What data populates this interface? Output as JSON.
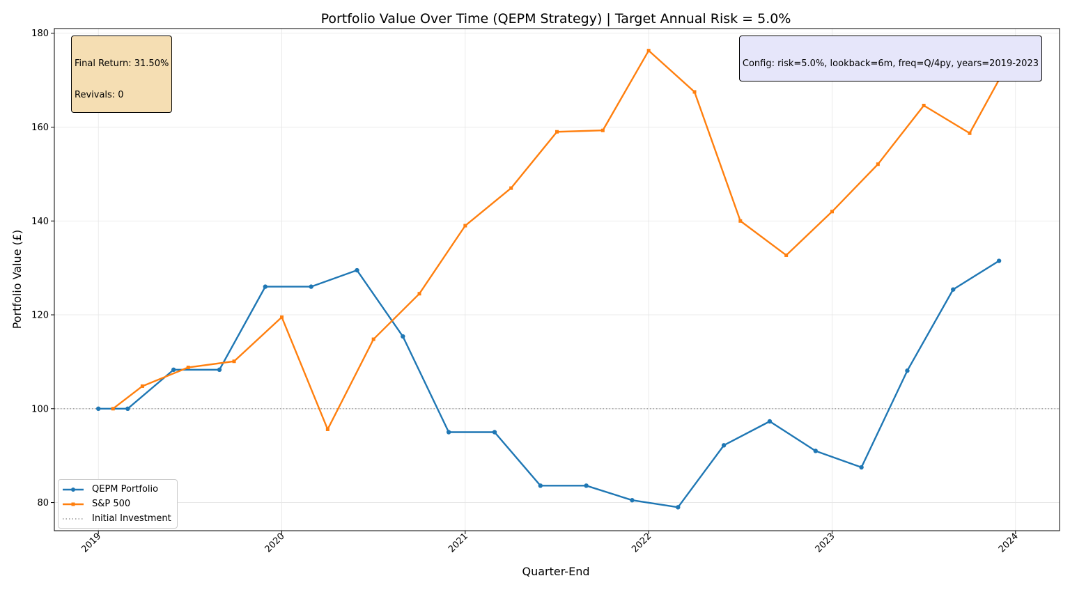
{
  "chart_data": {
    "type": "line",
    "title": "Portfolio Value Over Time (QEPM Strategy) | Target Annual Risk = 5.0%",
    "xlabel": "Quarter-End",
    "ylabel": "Portfolio Value (£)",
    "xlim": [
      2018.76,
      2024.24
    ],
    "ylim": [
      74,
      181
    ],
    "grid": true,
    "x_ticks": [
      2019,
      2020,
      2021,
      2022,
      2023,
      2024
    ],
    "x_tick_labels": [
      "2019",
      "2020",
      "2021",
      "2022",
      "2023",
      "2024"
    ],
    "y_ticks": [
      80,
      100,
      120,
      140,
      160,
      180
    ],
    "y_tick_labels": [
      "80",
      "100",
      "120",
      "140",
      "160",
      "180"
    ],
    "series": [
      {
        "name": "QEPM Portfolio",
        "color": "#1f77b4",
        "marker": "circle",
        "x": [
          2019.0,
          2019.16,
          2019.41,
          2019.66,
          2019.91,
          2020.16,
          2020.41,
          2020.66,
          2020.91,
          2021.16,
          2021.41,
          2021.66,
          2021.91,
          2022.16,
          2022.41,
          2022.66,
          2022.91,
          2023.16,
          2023.41,
          2023.66,
          2023.91
        ],
        "values": [
          100.0,
          100.0,
          108.3,
          108.3,
          126.0,
          126.0,
          129.5,
          115.4,
          95.0,
          95.0,
          83.6,
          83.6,
          80.5,
          79.0,
          92.2,
          97.3,
          91.0,
          87.5,
          108.1,
          125.4,
          131.5
        ]
      },
      {
        "name": "S&P 500",
        "color": "#ff7f0e",
        "marker": "square",
        "x": [
          2019.08,
          2019.24,
          2019.49,
          2019.74,
          2020.0,
          2020.25,
          2020.5,
          2020.75,
          2021.0,
          2021.25,
          2021.5,
          2021.75,
          2022.0,
          2022.25,
          2022.5,
          2022.75,
          2023.0,
          2023.25,
          2023.5,
          2023.75,
          2024.0
        ],
        "values": [
          100.0,
          104.8,
          108.8,
          110.1,
          119.5,
          95.6,
          114.8,
          124.5,
          139.0,
          147.0,
          159.0,
          159.3,
          176.3,
          167.5,
          140.0,
          132.7,
          142.0,
          152.1,
          164.6,
          158.7,
          176.5
        ]
      }
    ],
    "reference_line": {
      "name": "Initial Investment",
      "value": 100,
      "color": "#999999",
      "style": "dotted"
    },
    "annotations": [
      {
        "name": "stats",
        "lines": [
          "Final Return: 31.50%",
          "Revivals: 0"
        ],
        "background": "#f5deb3",
        "placement": "top-left"
      },
      {
        "name": "config",
        "lines": [
          "Config: risk=5.0%, lookback=6m, freq=Q/4py, years=2019-2023"
        ],
        "background": "#e6e6fa",
        "placement": "top-right"
      }
    ],
    "legend": {
      "placement": "bottom-left",
      "entries": [
        "QEPM Portfolio",
        "S&P 500",
        "Initial Investment"
      ]
    }
  },
  "annotations_text": {
    "stats_line1": "Final Return: 31.50%",
    "stats_line2": "Revivals: 0",
    "config_line": "Config: risk=5.0%, lookback=6m, freq=Q/4py, years=2019-2023"
  },
  "legend_labels": {
    "portfolio": "QEPM Portfolio",
    "sp500": "S&P 500",
    "initial": "Initial Investment"
  }
}
